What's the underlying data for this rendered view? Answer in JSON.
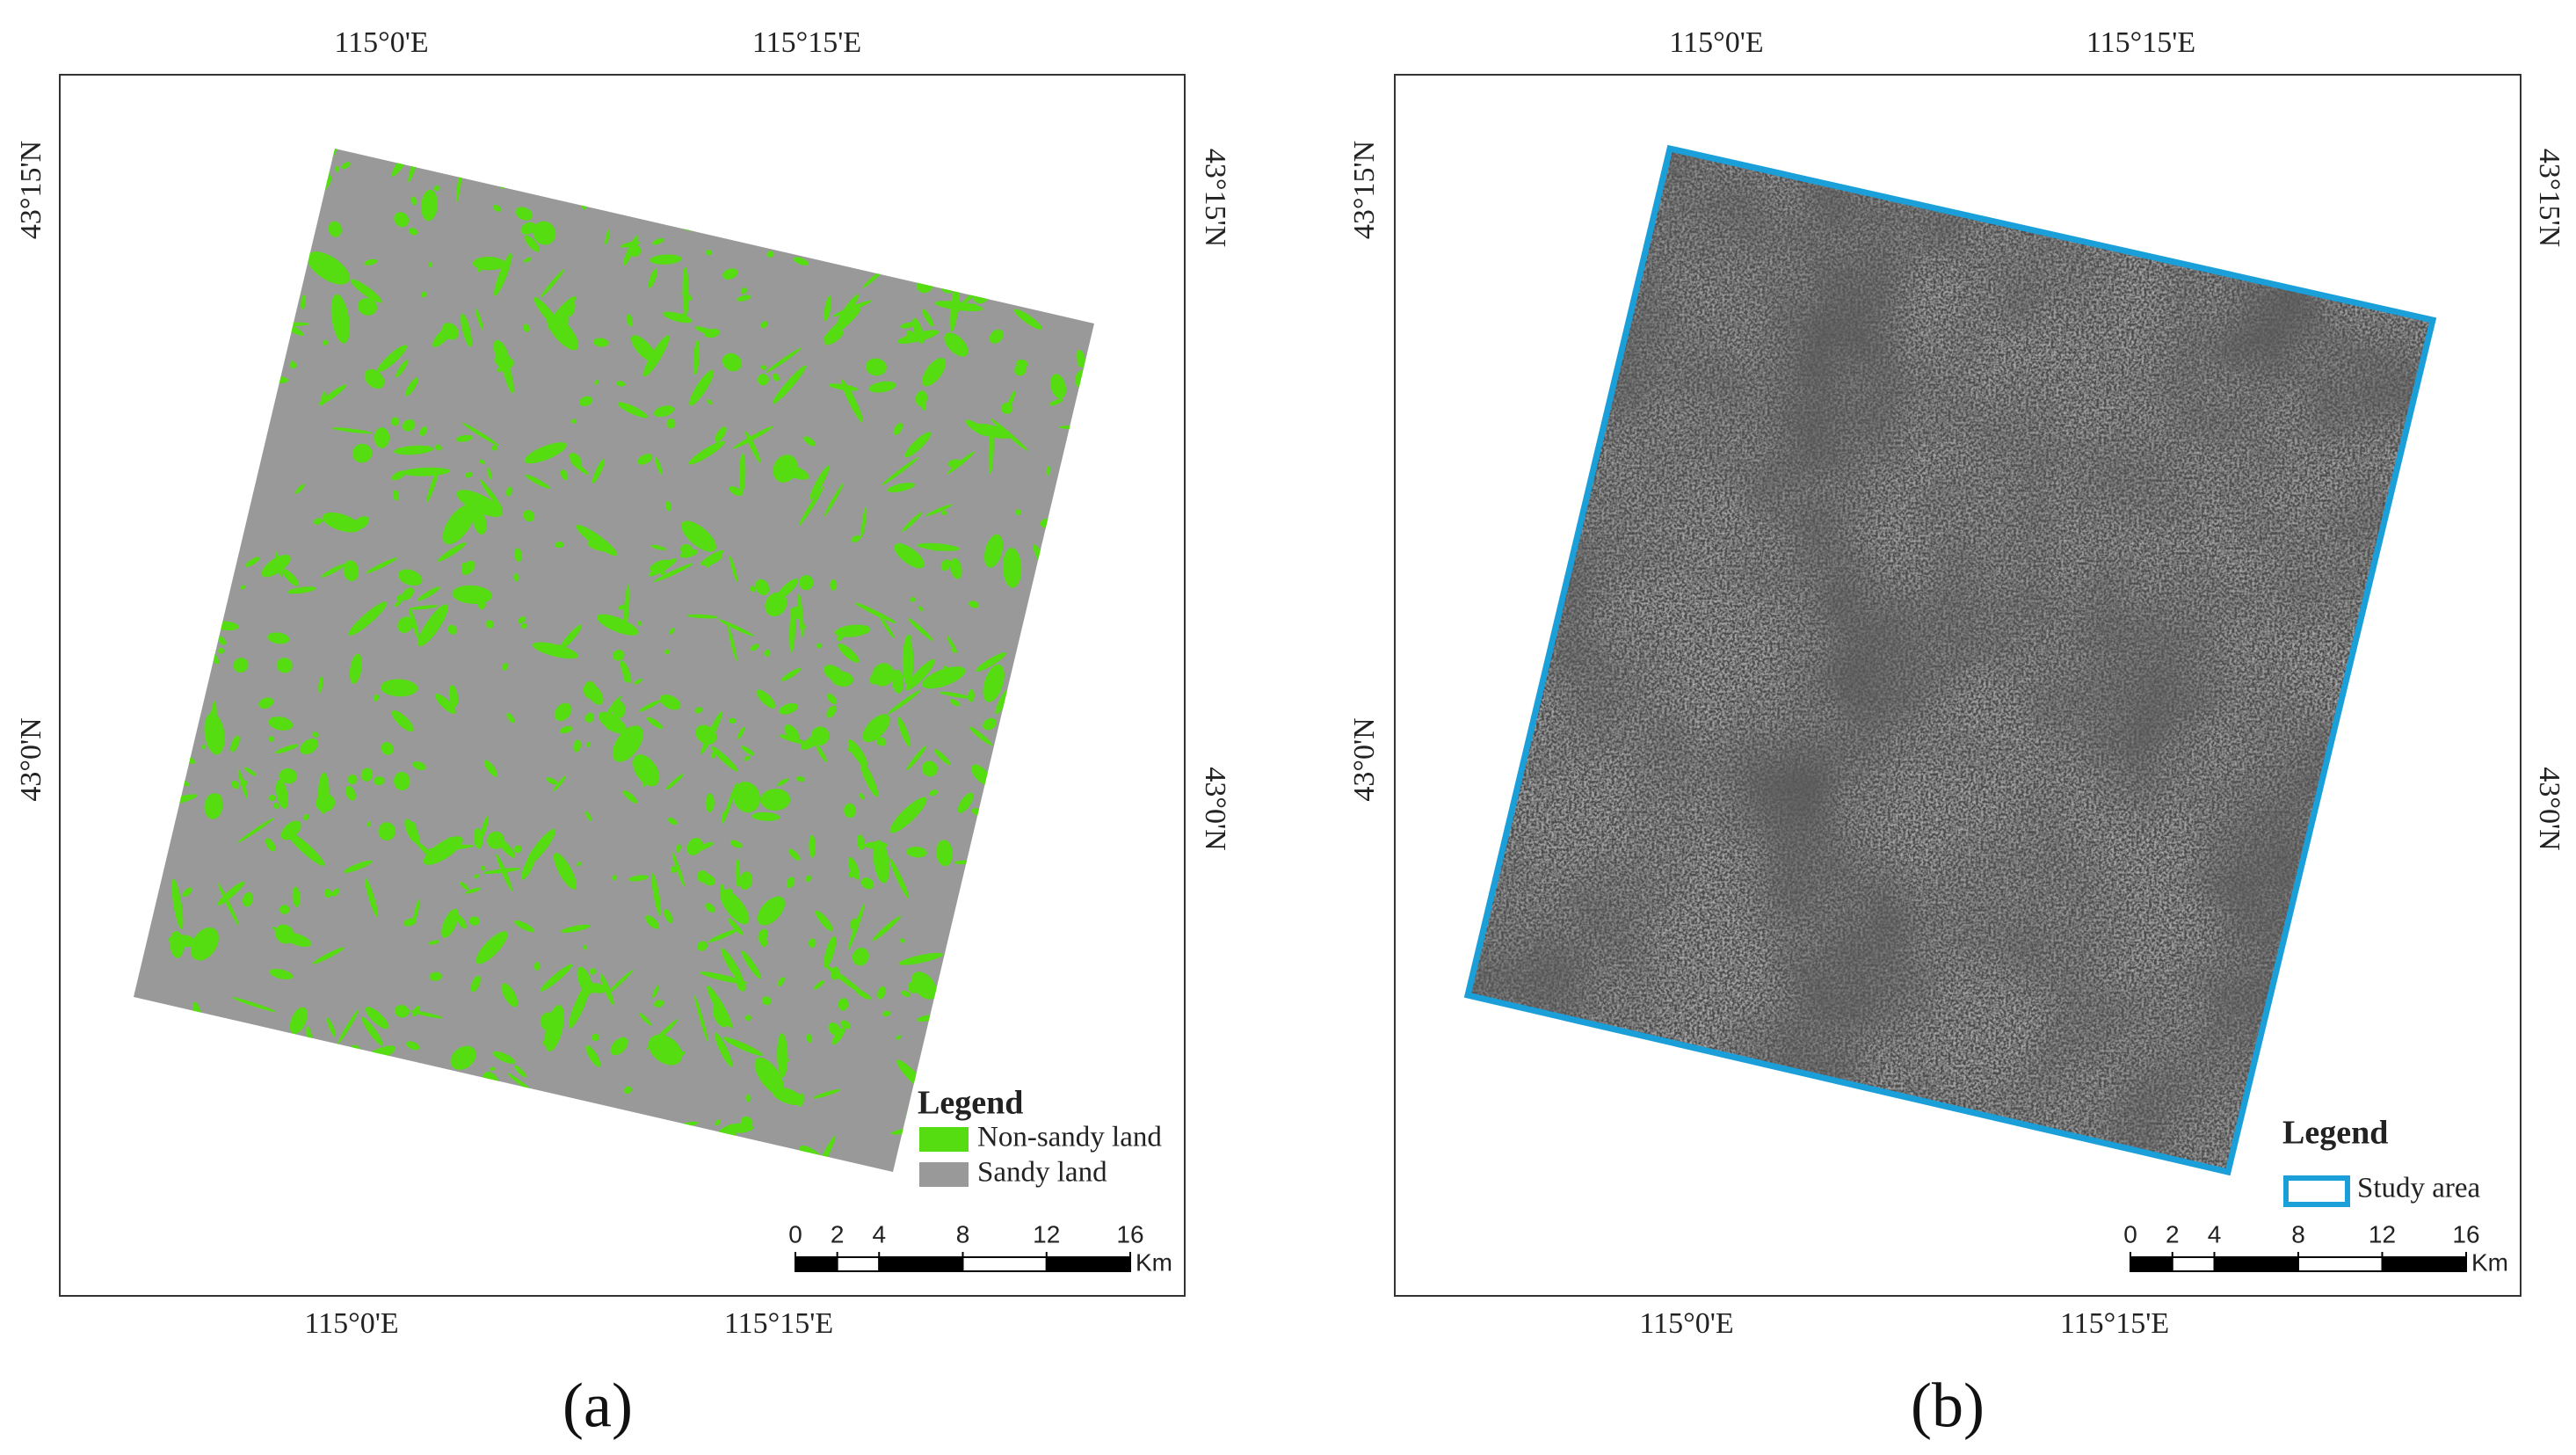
{
  "panels": [
    {
      "label": "(a)",
      "top_labels": [
        "115°0'E",
        "115°15'E"
      ],
      "bottom_labels": [
        "115°0'E",
        "115°15'E"
      ],
      "left_labels": [
        "43°15'N",
        "43°0'N"
      ],
      "right_labels": [
        "43°15'N",
        "43°0'N"
      ],
      "legend": {
        "title": "Legend",
        "items": [
          {
            "label": "Non-sandy land",
            "color": "#55dd11"
          },
          {
            "label": "Sandy land",
            "color": "#999999"
          }
        ]
      },
      "scale": {
        "ticks": [
          0,
          2,
          4,
          8,
          12,
          16
        ],
        "unit": "Km"
      }
    },
    {
      "label": "(b)",
      "top_labels": [
        "115°0'E",
        "115°15'E"
      ],
      "bottom_labels": [
        "115°0'E",
        "115°15'E"
      ],
      "left_labels": [
        "43°15'N",
        "43°0'N"
      ],
      "right_labels": [
        "43°15'N",
        "43°0'N"
      ],
      "legend": {
        "title": "Legend",
        "items": [
          {
            "label": "Study area",
            "color": "#1a9fd8"
          }
        ]
      },
      "scale": {
        "ticks": [
          0,
          2,
          4,
          8,
          12,
          16
        ],
        "unit": "Km"
      }
    }
  ]
}
